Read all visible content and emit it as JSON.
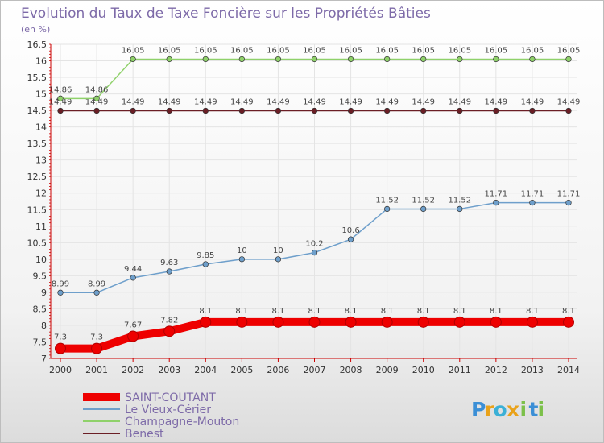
{
  "chart_data": {
    "type": "line",
    "title": "Evolution du Taux de Taxe Foncière sur les Propriétés Bâties",
    "subtitle": "(en %)",
    "ylim": [
      7,
      16.5
    ],
    "y_ticks": [
      "7",
      "7.5",
      "8",
      "8.5",
      "9",
      "9.5",
      "10",
      "10.5",
      "11",
      "11.5",
      "12",
      "12.5",
      "13",
      "13.5",
      "14",
      "14.5",
      "15",
      "15.5",
      "16",
      "16.5"
    ],
    "x": [
      "2000",
      "2001",
      "2002",
      "2003",
      "2004",
      "2005",
      "2006",
      "2007",
      "2008",
      "2009",
      "2010",
      "2011",
      "2012",
      "2013",
      "2014"
    ],
    "series": [
      {
        "name": "Benest",
        "color": "#6b1e25",
        "values": [
          14.49,
          14.49,
          14.49,
          14.49,
          14.49,
          14.49,
          14.49,
          14.49,
          14.49,
          14.49,
          14.49,
          14.49,
          14.49,
          14.49,
          14.49
        ],
        "labels": [
          "14.49",
          "14.49",
          "14.49",
          "14.49",
          "14.49",
          "14.49",
          "14.49",
          "14.49",
          "14.49",
          "14.49",
          "14.49",
          "14.49",
          "14.49",
          "14.49",
          "14.49"
        ]
      },
      {
        "name": "Champagne-Mouton",
        "color": "#8fd16a",
        "values": [
          14.86,
          14.86,
          16.05,
          16.05,
          16.05,
          16.05,
          16.05,
          16.05,
          16.05,
          16.05,
          16.05,
          16.05,
          16.05,
          16.05,
          16.05
        ],
        "labels": [
          "14.86",
          "14.86",
          "16.05",
          "16.05",
          "16.05",
          "16.05",
          "16.05",
          "16.05",
          "16.05",
          "16.05",
          "16.05",
          "16.05",
          "16.05",
          "16.05",
          "16.05"
        ]
      },
      {
        "name": "Le Vieux-Cérier",
        "color": "#6e9fcb",
        "values": [
          8.99,
          8.99,
          9.44,
          9.63,
          9.85,
          10,
          10,
          10.2,
          10.6,
          11.52,
          11.52,
          11.52,
          11.71,
          11.71,
          11.71
        ],
        "labels": [
          "8.99",
          "8.99",
          "9.44",
          "9.63",
          "9.85",
          "10",
          "10",
          "10.2",
          "10.6",
          "11.52",
          "11.52",
          "11.52",
          "11.71",
          "11.71",
          "11.71"
        ]
      },
      {
        "name": "SAINT-COUTANT",
        "color": "#ee0000",
        "values": [
          7.3,
          7.3,
          7.67,
          7.82,
          8.1,
          8.1,
          8.1,
          8.1,
          8.1,
          8.1,
          8.1,
          8.1,
          8.1,
          8.1,
          8.1
        ],
        "labels": [
          "7.3",
          "7.3",
          "7.67",
          "7.82",
          "8.1",
          "8.1",
          "8.1",
          "8.1",
          "8.1",
          "8.1",
          "8.1",
          "8.1",
          "8.1",
          "8.1",
          "8.1"
        ]
      }
    ],
    "legend": [
      "SAINT-COUTANT",
      "Le Vieux-Cérier",
      "Champagne-Mouton",
      "Benest"
    ],
    "legend_position": "bottom-left"
  },
  "brand": {
    "letters": [
      "P",
      "r",
      "o",
      "x",
      "i",
      "t",
      "i"
    ],
    "colors": [
      "#3b8fd6",
      "#e9a21a",
      "#3bb0d6",
      "#e9a21a",
      "#7cc04a",
      "#3b8fd6",
      "#7cc04a"
    ]
  }
}
